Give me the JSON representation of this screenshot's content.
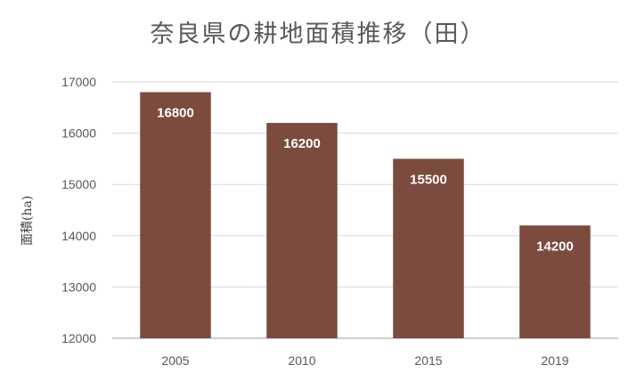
{
  "chart_data": {
    "type": "bar",
    "title": "奈良県の耕地面積推移（田）",
    "xlabel": "",
    "ylabel": "面積(ha)",
    "categories": [
      "2005",
      "2010",
      "2015",
      "2019"
    ],
    "series": [
      {
        "values": [
          16800,
          16200,
          15500,
          14200
        ]
      }
    ],
    "data_labels": [
      "16800",
      "16200",
      "15500",
      "14200"
    ],
    "ylim": [
      12000,
      17000
    ],
    "yticks": [
      12000,
      13000,
      14000,
      15000,
      16000,
      17000
    ],
    "ytick_labels": [
      "12000",
      "13000",
      "14000",
      "15000",
      "16000",
      "17000"
    ],
    "grid": true,
    "legend": "none",
    "colors": {
      "bar": "#7b4b3e",
      "grid": "#d9d9d9",
      "axis": "#bfbfbf",
      "title": "#595959",
      "tick": "#595959",
      "data_label": "#ffffff"
    }
  }
}
